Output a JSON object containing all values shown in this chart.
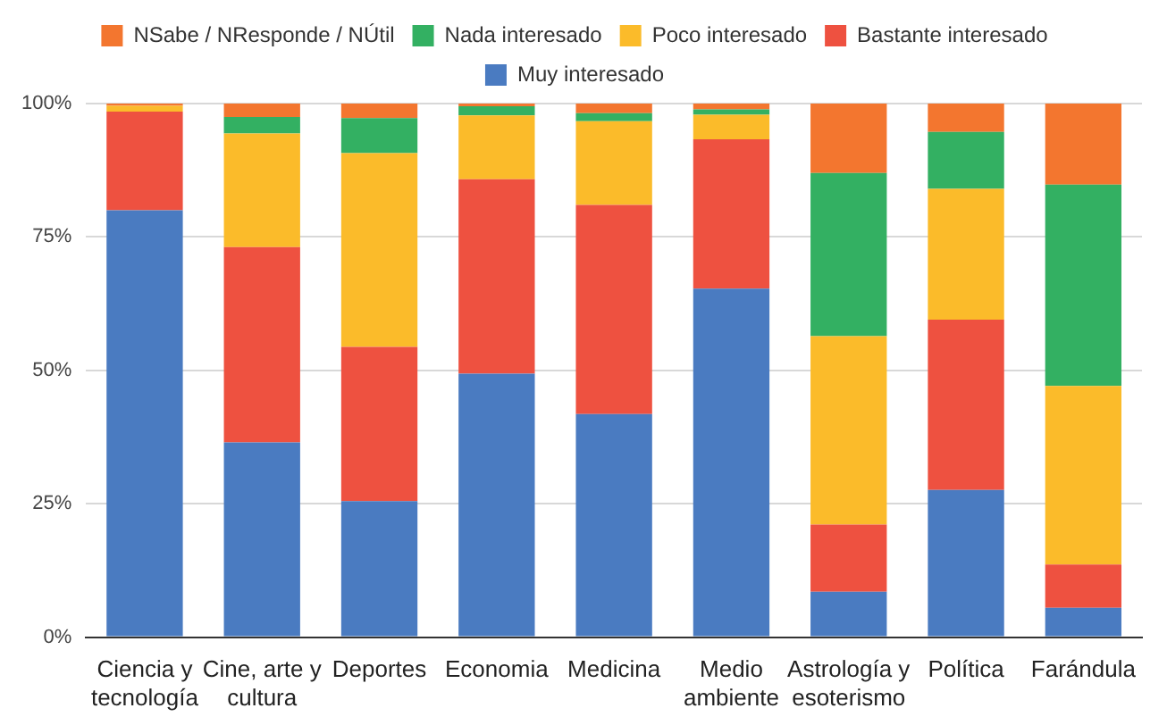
{
  "chart_data": {
    "type": "bar",
    "stacked": true,
    "categories": [
      "Ciencia y tecnología",
      "Cine, arte y cultura",
      "Deportes",
      "Economia",
      "Medicina",
      "Medio ambiente",
      "Astrología y esoterismo",
      "Política",
      "Farándula"
    ],
    "series": [
      {
        "name": "Muy interesado",
        "color": "#4a7bc1",
        "values": [
          80,
          36.5,
          25.5,
          49.4,
          41.8,
          65.3,
          8.5,
          27.6,
          5.5
        ]
      },
      {
        "name": "Bastante interesado",
        "color": "#ee5140",
        "values": [
          18.5,
          36.6,
          28.9,
          36.4,
          39.2,
          28,
          12.6,
          31.9,
          8.1
        ]
      },
      {
        "name": "Poco interesado",
        "color": "#fbbb2a",
        "values": [
          1.1,
          21.3,
          36.3,
          12,
          15.7,
          4.6,
          35.3,
          24.5,
          33.5
        ]
      },
      {
        "name": "Nada interesado",
        "color": "#33b062",
        "values": [
          0,
          3.1,
          6.6,
          1.7,
          1.5,
          1,
          30.6,
          10.7,
          37.7
        ]
      },
      {
        "name": "NSabe / NResponde / NÚtil",
        "color": "#f3762f",
        "values": [
          0.4,
          2.5,
          2.7,
          0.5,
          1.8,
          1.1,
          13,
          5.3,
          15.2
        ]
      }
    ],
    "ylim": [
      0,
      100
    ],
    "yticks": [
      {
        "value": 0,
        "label": "0%"
      },
      {
        "value": 25,
        "label": "25%"
      },
      {
        "value": 50,
        "label": "50%"
      },
      {
        "value": 75,
        "label": "75%"
      },
      {
        "value": 100,
        "label": "100%"
      }
    ],
    "grid": "y",
    "legend": "top"
  }
}
